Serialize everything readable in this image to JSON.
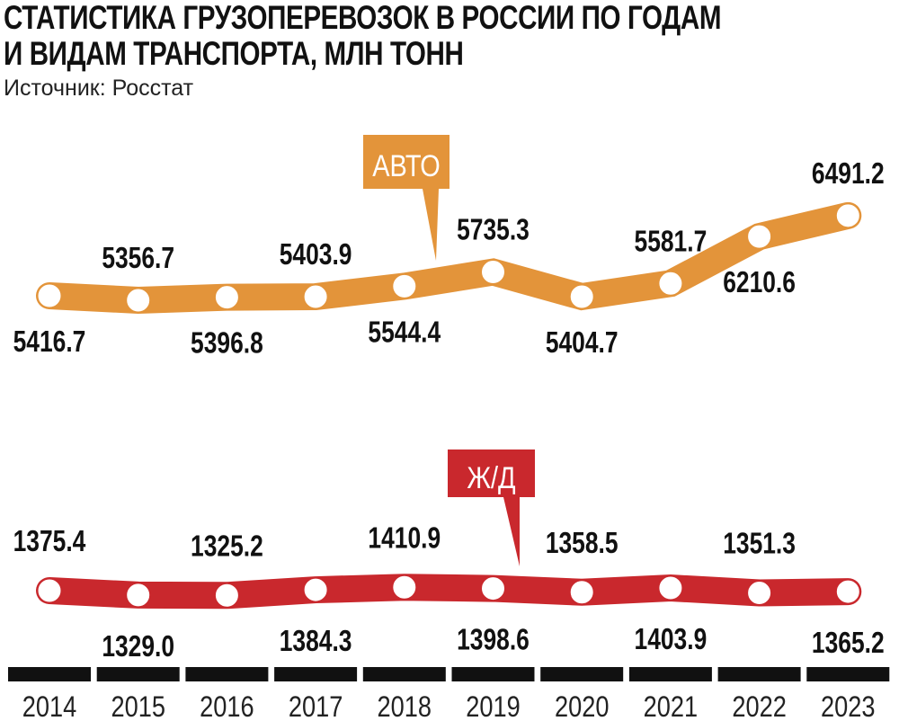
{
  "title_line1": "СТАТИСТИКА ГРУЗОПЕРЕВОЗОК В РОССИИ ПО ГОДАМ",
  "title_line2": "И ВИДАМ ТРАНСПОРТА, МЛН ТОНН",
  "subtitle": "Источник: Росстат",
  "chart_data": {
    "type": "line",
    "title": "СТАТИСТИКА ГРУЗОПЕРЕВОЗОК В РОССИИ ПО ГОДАМ И ВИДАМ ТРАНСПОРТА, МЛН ТОНН",
    "categories": [
      "2014",
      "2015",
      "2016",
      "2017",
      "2018",
      "2019",
      "2020",
      "2021",
      "2022",
      "2023"
    ],
    "grid": false,
    "series": [
      {
        "name": "АВТО",
        "color": "#e3943a",
        "values": [
          5416.7,
          5356.7,
          5396.8,
          5403.9,
          5544.4,
          5735.3,
          5404.7,
          5581.7,
          6210.6,
          6491.2
        ]
      },
      {
        "name": "Ж/Д",
        "color": "#c9282d",
        "values": [
          1375.4,
          1329.0,
          1325.2,
          1384.3,
          1410.9,
          1398.6,
          1358.5,
          1403.9,
          1351.3,
          1365.2
        ]
      }
    ]
  }
}
